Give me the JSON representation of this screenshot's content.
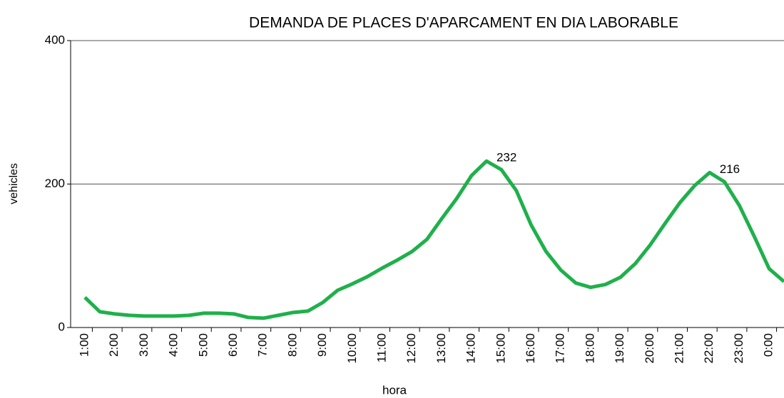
{
  "chart_data": {
    "type": "line",
    "title": "DEMANDA DE PLACES D'APARCAMENT EN DIA LABORABLE",
    "x_label": "hora",
    "y_label": "vehicles",
    "categories": [
      "1:00",
      null,
      "2:00",
      null,
      "3:00",
      null,
      "4:00",
      null,
      "5:00",
      null,
      "6:00",
      null,
      "7:00",
      null,
      "8:00",
      null,
      "9:00",
      null,
      "10:00",
      null,
      "11:00",
      null,
      "12:00",
      null,
      "13:00",
      null,
      "14:00",
      null,
      "15:00",
      null,
      "16:00",
      null,
      "17:00",
      null,
      "18:00",
      null,
      "19:00",
      null,
      "20:00",
      null,
      "21:00",
      null,
      "22:00",
      null,
      "23:00",
      null,
      "0:00",
      null
    ],
    "series": [
      {
        "name": "vehicles",
        "color": "#1fb04b",
        "values": [
          42,
          22,
          19,
          17,
          16,
          16,
          16,
          17,
          20,
          20,
          19,
          14,
          13,
          17,
          21,
          23,
          35,
          52,
          61,
          71,
          83,
          94,
          106,
          123,
          152,
          180,
          212,
          232,
          220,
          191,
          143,
          106,
          80,
          62,
          56,
          60,
          70,
          89,
          115,
          145,
          174,
          198,
          216,
          203,
          170,
          127,
          82,
          64
        ],
        "value_labels": [
          null,
          null,
          null,
          null,
          null,
          null,
          null,
          null,
          null,
          null,
          null,
          null,
          null,
          null,
          null,
          null,
          null,
          null,
          null,
          null,
          null,
          null,
          null,
          null,
          null,
          null,
          null,
          "232",
          null,
          null,
          null,
          null,
          null,
          null,
          null,
          null,
          null,
          null,
          null,
          null,
          null,
          null,
          "216",
          null,
          null,
          null,
          null,
          null
        ]
      }
    ],
    "ylim": [
      0,
      400
    ],
    "yticks": [
      0,
      200,
      400
    ],
    "grid": true
  }
}
